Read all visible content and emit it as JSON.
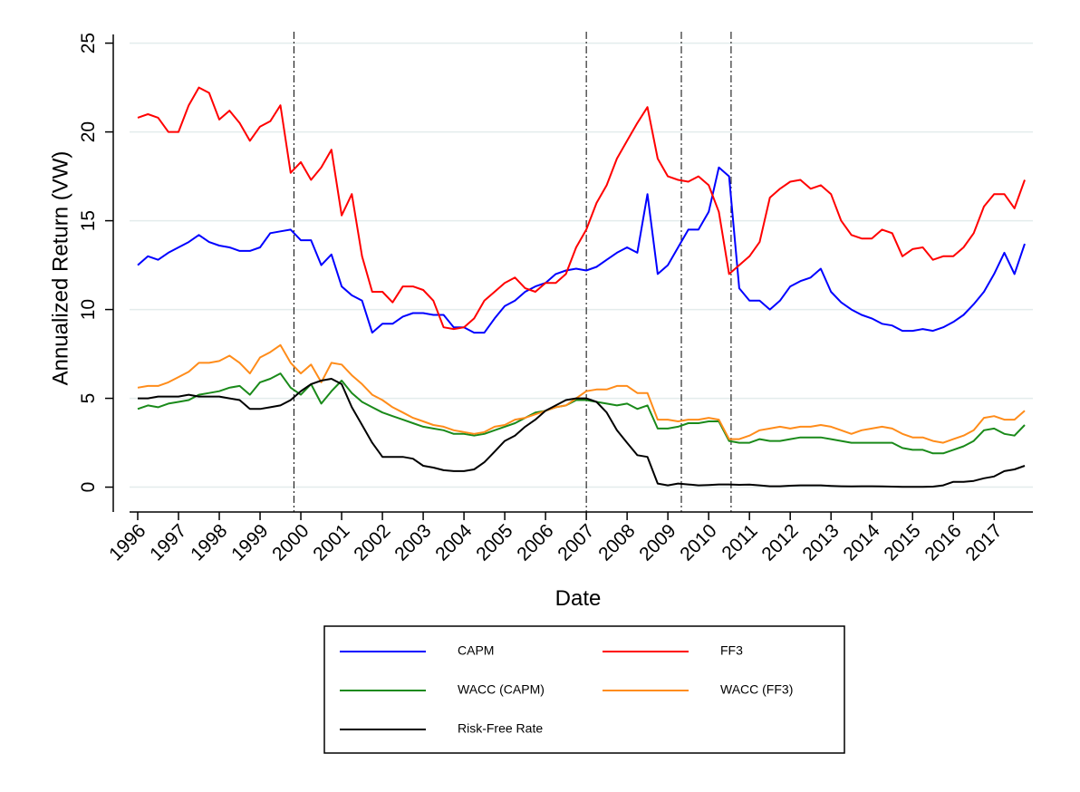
{
  "chart_data": {
    "type": "line",
    "x_label": "Date",
    "y_label": "Annualized Return (VW)",
    "x": [
      1996,
      1996.25,
      1996.5,
      1996.75,
      1997,
      1997.25,
      1997.5,
      1997.75,
      1998,
      1998.25,
      1998.5,
      1998.75,
      1999,
      1999.25,
      1999.5,
      1999.75,
      2000,
      2000.25,
      2000.5,
      2000.75,
      2001,
      2001.25,
      2001.5,
      2001.75,
      2002,
      2002.25,
      2002.5,
      2002.75,
      2003,
      2003.25,
      2003.5,
      2003.75,
      2004,
      2004.25,
      2004.5,
      2004.75,
      2005,
      2005.25,
      2005.5,
      2005.75,
      2006,
      2006.25,
      2006.5,
      2006.75,
      2007,
      2007.25,
      2007.5,
      2007.75,
      2008,
      2008.25,
      2008.5,
      2008.75,
      2009,
      2009.25,
      2009.5,
      2009.75,
      2010,
      2010.25,
      2010.5,
      2010.75,
      2011,
      2011.25,
      2011.5,
      2011.75,
      2012,
      2012.25,
      2012.5,
      2012.75,
      2013,
      2013.25,
      2013.5,
      2013.75,
      2014,
      2014.25,
      2014.5,
      2014.75,
      2015,
      2015.25,
      2015.5,
      2015.75,
      2016,
      2016.25,
      2016.5,
      2016.75,
      2017,
      2017.25,
      2017.5,
      2017.75
    ],
    "series": [
      {
        "name": "CAPM",
        "color": "#0000ff",
        "values": [
          12.5,
          13,
          12.8,
          13.2,
          13.5,
          13.8,
          14.2,
          13.8,
          13.6,
          13.5,
          13.3,
          13.3,
          13.5,
          14.3,
          14.4,
          14.5,
          13.9,
          13.9,
          12.5,
          13.1,
          11.3,
          10.8,
          10.5,
          8.7,
          9.2,
          9.2,
          9.6,
          9.8,
          9.8,
          9.7,
          9.7,
          9,
          9,
          8.7,
          8.7,
          9.5,
          10.2,
          10.5,
          11,
          11.3,
          11.5,
          12,
          12.2,
          12.3,
          12.2,
          12.4,
          12.8,
          13.2,
          13.5,
          13.2,
          16.5,
          12,
          12.5,
          13.5,
          14.5,
          14.5,
          15.5,
          18,
          17.5,
          11.2,
          10.5,
          10.5,
          10,
          10.5,
          11.3,
          11.6,
          11.8,
          12.3,
          11,
          10.4,
          10,
          9.7,
          9.5,
          9.2,
          9.1,
          8.8,
          8.8,
          8.9,
          8.8,
          9,
          9.3,
          9.7,
          10.3,
          11,
          12,
          13.2,
          12,
          13.7
        ]
      },
      {
        "name": "FF3",
        "color": "#ff0000",
        "values": [
          20.8,
          21,
          20.8,
          20,
          20,
          21.5,
          22.5,
          22.2,
          20.7,
          21.2,
          20.5,
          19.5,
          20.3,
          20.6,
          21.5,
          17.7,
          18.3,
          17.3,
          18,
          19,
          15.3,
          16.5,
          13,
          11,
          11,
          10.4,
          11.3,
          11.3,
          11.1,
          10.5,
          9,
          8.9,
          9,
          9.5,
          10.5,
          11,
          11.5,
          11.8,
          11.2,
          11,
          11.5,
          11.5,
          12,
          13.5,
          14.5,
          16,
          17,
          18.5,
          19.5,
          20.5,
          21.4,
          18.5,
          17.5,
          17.3,
          17.2,
          17.5,
          17,
          15.5,
          12,
          12.5,
          13,
          13.8,
          16.3,
          16.8,
          17.2,
          17.3,
          16.8,
          17,
          16.5,
          15,
          14.2,
          14,
          14,
          14.5,
          14.3,
          13,
          13.4,
          13.5,
          12.8,
          13,
          13,
          13.5,
          14.3,
          15.8,
          16.5,
          16.5,
          15.7,
          17.3
        ]
      },
      {
        "name": "WACC (CAPM)",
        "color": "#1a8a1a",
        "values": [
          4.4,
          4.6,
          4.5,
          4.7,
          4.8,
          4.9,
          5.2,
          5.3,
          5.4,
          5.6,
          5.7,
          5.2,
          5.9,
          6.1,
          6.4,
          5.6,
          5.2,
          5.8,
          4.7,
          5.4,
          6,
          5.3,
          4.8,
          4.5,
          4.2,
          4,
          3.8,
          3.6,
          3.4,
          3.3,
          3.2,
          3,
          3,
          2.9,
          3,
          3.2,
          3.4,
          3.6,
          3.9,
          4.2,
          4.3,
          4.5,
          4.6,
          4.9,
          4.9,
          4.8,
          4.7,
          4.6,
          4.7,
          4.4,
          4.6,
          3.3,
          3.3,
          3.4,
          3.6,
          3.6,
          3.7,
          3.7,
          2.6,
          2.5,
          2.5,
          2.7,
          2.6,
          2.6,
          2.7,
          2.8,
          2.8,
          2.8,
          2.7,
          2.6,
          2.5,
          2.5,
          2.5,
          2.5,
          2.5,
          2.2,
          2.1,
          2.1,
          1.9,
          1.9,
          2.1,
          2.3,
          2.6,
          3.2,
          3.3,
          3,
          2.9,
          3.5
        ]
      },
      {
        "name": "WACC (FF3)",
        "color": "#ff8c1a",
        "values": [
          5.6,
          5.7,
          5.7,
          5.9,
          6.2,
          6.5,
          7,
          7,
          7.1,
          7.4,
          7,
          6.4,
          7.3,
          7.6,
          8,
          7,
          6.4,
          6.9,
          5.9,
          7,
          6.9,
          6.3,
          5.8,
          5.2,
          4.9,
          4.5,
          4.2,
          3.9,
          3.7,
          3.5,
          3.4,
          3.2,
          3.1,
          3,
          3.1,
          3.4,
          3.5,
          3.8,
          3.9,
          4.1,
          4.3,
          4.5,
          4.6,
          5,
          5.4,
          5.5,
          5.5,
          5.7,
          5.7,
          5.3,
          5.3,
          3.8,
          3.8,
          3.7,
          3.8,
          3.8,
          3.9,
          3.8,
          2.7,
          2.7,
          2.9,
          3.2,
          3.3,
          3.4,
          3.3,
          3.4,
          3.4,
          3.5,
          3.4,
          3.2,
          3,
          3.2,
          3.3,
          3.4,
          3.3,
          3,
          2.8,
          2.8,
          2.6,
          2.5,
          2.7,
          2.9,
          3.2,
          3.9,
          4,
          3.8,
          3.8,
          4.3
        ]
      },
      {
        "name": "Risk-Free Rate",
        "color": "#000000",
        "values": [
          5,
          5,
          5.1,
          5.1,
          5.1,
          5.2,
          5.1,
          5.1,
          5.1,
          5,
          4.9,
          4.4,
          4.4,
          4.5,
          4.6,
          4.9,
          5.4,
          5.8,
          6,
          6.1,
          5.8,
          4.5,
          3.5,
          2.5,
          1.7,
          1.7,
          1.7,
          1.6,
          1.2,
          1.1,
          0.95,
          0.9,
          0.9,
          1,
          1.4,
          2,
          2.6,
          2.9,
          3.4,
          3.8,
          4.3,
          4.6,
          4.9,
          5,
          5,
          4.8,
          4.2,
          3.2,
          2.5,
          1.8,
          1.7,
          0.2,
          0.1,
          0.2,
          0.15,
          0.1,
          0.12,
          0.15,
          0.15,
          0.13,
          0.14,
          0.1,
          0.05,
          0.05,
          0.08,
          0.1,
          0.1,
          0.1,
          0.07,
          0.05,
          0.04,
          0.05,
          0.05,
          0.04,
          0.03,
          0.02,
          0.02,
          0.02,
          0.03,
          0.1,
          0.3,
          0.3,
          0.35,
          0.5,
          0.6,
          0.9,
          1,
          1.2
        ]
      }
    ],
    "xlim": [
      1995.8,
      2017.95
    ],
    "xticks": [
      1996,
      1997,
      1998,
      1999,
      2000,
      2001,
      2002,
      2003,
      2004,
      2005,
      2006,
      2007,
      2008,
      2009,
      2010,
      2011,
      2012,
      2013,
      2014,
      2015,
      2016,
      2017
    ],
    "ylim": [
      -1.4,
      26
    ],
    "yticks": [
      0,
      5,
      10,
      15,
      20,
      25
    ],
    "grid": true,
    "vlines": [
      1999.83,
      2007.0,
      2009.33,
      2010.55
    ],
    "legend": "bottom"
  }
}
